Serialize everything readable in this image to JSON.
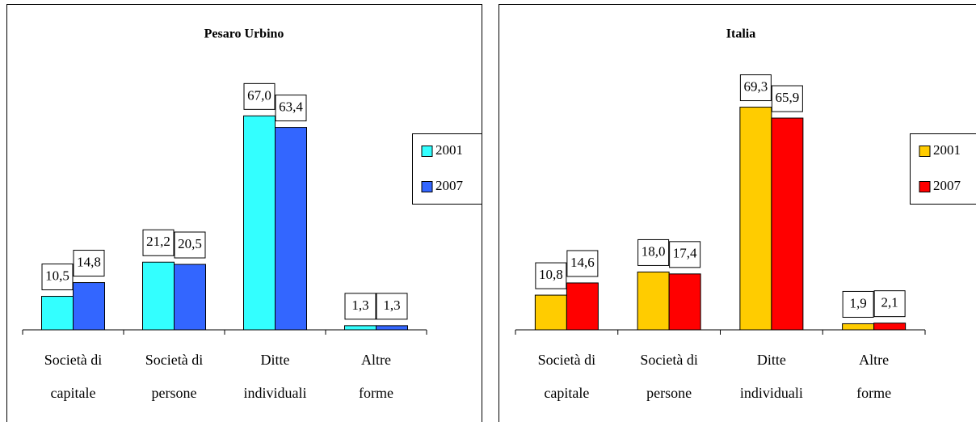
{
  "chart_data": [
    {
      "type": "bar",
      "title": "Pesaro Urbino",
      "categories": [
        "Società di capitale",
        "Società di persone",
        "Ditte individuali",
        "Altre forme"
      ],
      "series": [
        {
          "name": "2001",
          "color": "#33ffff",
          "values": [
            10.5,
            21.2,
            67.0,
            1.3
          ],
          "value_labels": [
            "10,5",
            "21,2",
            "67,0",
            "1,3"
          ]
        },
        {
          "name": "2007",
          "color": "#3366ff",
          "values": [
            14.8,
            20.5,
            63.4,
            1.3
          ],
          "value_labels": [
            "14,8",
            "20,5",
            "63,4",
            "1,3"
          ]
        }
      ],
      "ylim": [
        0,
        80
      ],
      "legend": "right"
    },
    {
      "type": "bar",
      "title": "Italia",
      "categories": [
        "Società di capitale",
        "Società di persone",
        "Ditte individuali",
        "Altre forme"
      ],
      "series": [
        {
          "name": "2001",
          "color": "#ffcc00",
          "values": [
            10.8,
            18.0,
            69.3,
            1.9
          ],
          "value_labels": [
            "10,8",
            "18,0",
            "69,3",
            "1,9"
          ]
        },
        {
          "name": "2007",
          "color": "#ff0000",
          "values": [
            14.6,
            17.4,
            65.9,
            2.1
          ],
          "value_labels": [
            "14,6",
            "17,4",
            "65,9",
            "2,1"
          ]
        }
      ],
      "ylim": [
        0,
        80
      ],
      "legend": "right"
    }
  ]
}
